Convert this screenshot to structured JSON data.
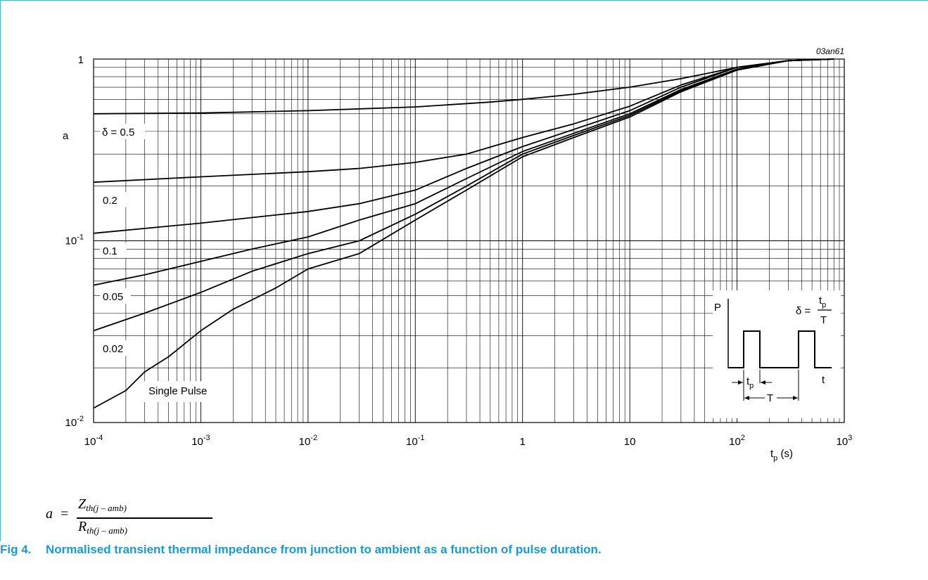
{
  "figure_code": "03an61",
  "caption": {
    "number": "Fig 4.",
    "text": "Normalised transient thermal impedance from junction to ambient as a function of pulse duration."
  },
  "formula": {
    "lhs": "a",
    "eq": "=",
    "num_main": "Z",
    "num_sub": "th(j – amb)",
    "den_main": "R",
    "den_sub": "th(j – amb)"
  },
  "colors": {
    "caption": "#1a9bd0",
    "frame": "#4db6d6",
    "line": "#000000"
  },
  "chart_data": {
    "type": "line",
    "x_scale": "log",
    "y_scale": "log",
    "xlim": [
      0.0001,
      1000
    ],
    "ylim": [
      0.01,
      1
    ],
    "grid": true,
    "title": "",
    "xlabel": "t_p (s)",
    "ylabel": "a",
    "x_ticks": [
      {
        "value": 0.0001,
        "base": "10",
        "exp": "-4"
      },
      {
        "value": 0.001,
        "base": "10",
        "exp": "-3"
      },
      {
        "value": 0.01,
        "base": "10",
        "exp": "-2"
      },
      {
        "value": 0.1,
        "base": "10",
        "exp": "-1"
      },
      {
        "value": 1,
        "base": "1",
        "exp": ""
      },
      {
        "value": 10,
        "base": "10",
        "exp": ""
      },
      {
        "value": 100,
        "base": "10",
        "exp": "2"
      },
      {
        "value": 1000,
        "base": "10",
        "exp": "3"
      }
    ],
    "y_ticks": [
      {
        "value": 1,
        "base": "1",
        "exp": ""
      },
      {
        "value": 0.1,
        "base": "10",
        "exp": "-1"
      },
      {
        "value": 0.01,
        "base": "10",
        "exp": "-2"
      }
    ],
    "series": [
      {
        "name": "δ = 0.5",
        "x": [
          0.0001,
          0.001,
          0.01,
          0.1,
          0.5,
          1,
          3,
          10,
          30,
          100,
          300,
          800
        ],
        "y": [
          0.5,
          0.505,
          0.52,
          0.545,
          0.58,
          0.6,
          0.64,
          0.7,
          0.78,
          0.9,
          0.98,
          1.0
        ]
      },
      {
        "name": "0.2",
        "x": [
          0.0001,
          0.001,
          0.01,
          0.03,
          0.1,
          0.3,
          1,
          3,
          10,
          30,
          100,
          300,
          800
        ],
        "y": [
          0.21,
          0.225,
          0.24,
          0.25,
          0.27,
          0.3,
          0.37,
          0.44,
          0.55,
          0.72,
          0.9,
          0.98,
          1.0
        ]
      },
      {
        "name": "0.1",
        "x": [
          0.0001,
          0.001,
          0.01,
          0.03,
          0.1,
          0.3,
          1,
          3,
          10,
          30,
          100,
          300,
          800
        ],
        "y": [
          0.11,
          0.125,
          0.145,
          0.16,
          0.19,
          0.25,
          0.33,
          0.41,
          0.52,
          0.7,
          0.9,
          0.98,
          1.0
        ]
      },
      {
        "name": "0.05",
        "x": [
          0.0001,
          0.0003,
          0.001,
          0.003,
          0.01,
          0.03,
          0.1,
          0.3,
          1,
          3,
          10,
          30,
          100,
          300,
          800
        ],
        "y": [
          0.057,
          0.065,
          0.077,
          0.09,
          0.105,
          0.13,
          0.16,
          0.22,
          0.31,
          0.39,
          0.5,
          0.68,
          0.88,
          0.98,
          1.0
        ]
      },
      {
        "name": "0.02",
        "x": [
          0.0001,
          0.0003,
          0.001,
          0.003,
          0.01,
          0.03,
          0.1,
          0.3,
          1,
          3,
          10,
          30,
          100,
          300,
          800
        ],
        "y": [
          0.032,
          0.04,
          0.052,
          0.068,
          0.085,
          0.1,
          0.14,
          0.2,
          0.3,
          0.38,
          0.49,
          0.67,
          0.87,
          0.98,
          1.0
        ]
      },
      {
        "name": "Single Pulse",
        "x": [
          0.0001,
          0.0002,
          0.0003,
          0.0005,
          0.001,
          0.002,
          0.005,
          0.01,
          0.03,
          0.1,
          0.3,
          1,
          3,
          10,
          30,
          100,
          300,
          800
        ],
        "y": [
          0.012,
          0.015,
          0.019,
          0.023,
          0.032,
          0.042,
          0.055,
          0.07,
          0.085,
          0.13,
          0.19,
          0.29,
          0.37,
          0.48,
          0.66,
          0.87,
          0.98,
          1.0
        ]
      }
    ],
    "inset": {
      "p_label": "P",
      "t_label": "t",
      "tp_main": "t",
      "tp_sub": "p",
      "T_label": "T",
      "delta_lhs": "δ =",
      "delta_num_main": "t",
      "delta_num_sub": "p",
      "delta_den": "T"
    }
  }
}
